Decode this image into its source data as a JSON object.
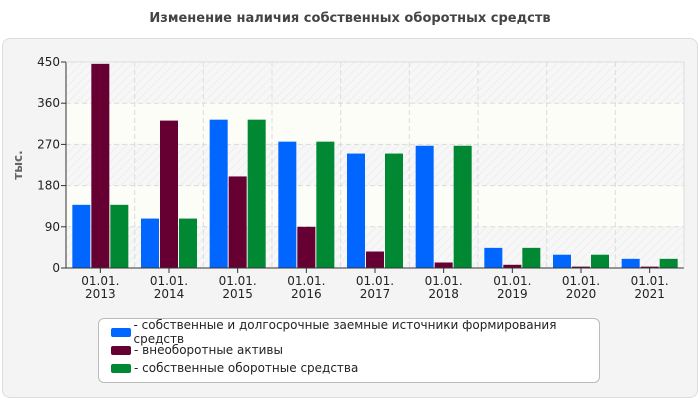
{
  "chart_data": {
    "type": "bar",
    "title": "Изменение наличия собственных оборотных средств",
    "ylabel": "тыс.",
    "xlabel": "",
    "categories": [
      "01.01.\n2013",
      "01.01.\n2014",
      "01.01.\n2015",
      "01.01.\n2016",
      "01.01.\n2017",
      "01.01.\n2018",
      "01.01.\n2019",
      "01.01.\n2020",
      "01.01.\n2021"
    ],
    "ylim": [
      0,
      450
    ],
    "yticks": [
      0,
      90,
      180,
      270,
      360,
      450
    ],
    "grid": true,
    "legend_position": "bottom",
    "series": [
      {
        "name": "- собственные и долгосрочные заемные источники формирования средств",
        "color": "#0066ff",
        "values": [
          138,
          108,
          324,
          276,
          250,
          267,
          44,
          29,
          20
        ]
      },
      {
        "name": "- внеоборотные активы",
        "color": "#660033",
        "values": [
          446,
          322,
          200,
          90,
          36,
          12,
          7,
          3,
          3
        ]
      },
      {
        "name": "- собственные оборотные средства",
        "color": "#008833",
        "values": [
          138,
          108,
          324,
          276,
          250,
          267,
          44,
          29,
          20
        ]
      }
    ]
  }
}
